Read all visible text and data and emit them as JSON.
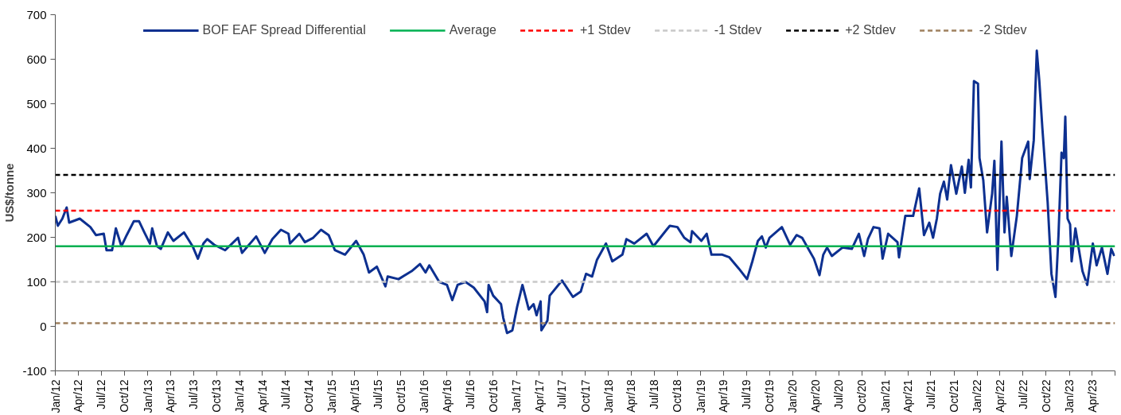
{
  "chart_data": {
    "type": "line",
    "ylabel": "US$/tonne",
    "legend": "top",
    "grid": false,
    "line_style": "solid",
    "marker": "none",
    "xlim": [
      "2012-01",
      "2023-07"
    ],
    "xticks": [
      {
        "value": "2012-01",
        "label": "Jan/12"
      },
      {
        "value": "2012-04",
        "label": "Apr/12"
      },
      {
        "value": "2012-07",
        "label": "Jul/12"
      },
      {
        "value": "2012-10",
        "label": "Oct/12"
      },
      {
        "value": "2013-01",
        "label": "Jan/13"
      },
      {
        "value": "2013-04",
        "label": "Apr/13"
      },
      {
        "value": "2013-07",
        "label": "Jul/13"
      },
      {
        "value": "2013-10",
        "label": "Oct/13"
      },
      {
        "value": "2014-01",
        "label": "Jan/14"
      },
      {
        "value": "2014-04",
        "label": "Apr/14"
      },
      {
        "value": "2014-07",
        "label": "Jul/14"
      },
      {
        "value": "2014-10",
        "label": "Oct/14"
      },
      {
        "value": "2015-01",
        "label": "Jan/15"
      },
      {
        "value": "2015-04",
        "label": "Apr/15"
      },
      {
        "value": "2015-07",
        "label": "Jul/15"
      },
      {
        "value": "2015-10",
        "label": "Oct/15"
      },
      {
        "value": "2016-01",
        "label": "Jan/16"
      },
      {
        "value": "2016-04",
        "label": "Apr/16"
      },
      {
        "value": "2016-07",
        "label": "Jul/16"
      },
      {
        "value": "2016-10",
        "label": "Oct/16"
      },
      {
        "value": "2017-01",
        "label": "Jan/17"
      },
      {
        "value": "2017-04",
        "label": "Apr/17"
      },
      {
        "value": "2017-07",
        "label": "Jul/17"
      },
      {
        "value": "2017-10",
        "label": "Oct/17"
      },
      {
        "value": "2018-01",
        "label": "Jan/18"
      },
      {
        "value": "2018-04",
        "label": "Apr/18"
      },
      {
        "value": "2018-07",
        "label": "Jul/18"
      },
      {
        "value": "2018-10",
        "label": "Oct/18"
      },
      {
        "value": "2019-01",
        "label": "Jan/19"
      },
      {
        "value": "2019-04",
        "label": "Apr/19"
      },
      {
        "value": "2019-07",
        "label": "Jul/19"
      },
      {
        "value": "2019-10",
        "label": "Oct/19"
      },
      {
        "value": "2020-01",
        "label": "Jan/20"
      },
      {
        "value": "2020-04",
        "label": "Apr/20"
      },
      {
        "value": "2020-07",
        "label": "Jul/20"
      },
      {
        "value": "2020-10",
        "label": "Oct/20"
      },
      {
        "value": "2021-01",
        "label": "Jan/21"
      },
      {
        "value": "2021-04",
        "label": "Apr/21"
      },
      {
        "value": "2021-07",
        "label": "Jul/21"
      },
      {
        "value": "2021-10",
        "label": "Oct/21"
      },
      {
        "value": "2022-01",
        "label": "Jan/22"
      },
      {
        "value": "2022-04",
        "label": "Apr/22"
      },
      {
        "value": "2022-07",
        "label": "Jul/22"
      },
      {
        "value": "2022-10",
        "label": "Oct/22"
      },
      {
        "value": "2023-01",
        "label": "Jan/23"
      },
      {
        "value": "2023-04",
        "label": "Apr/23"
      },
      {
        "value": "2023-07",
        "label": null
      }
    ],
    "ylim": [
      -100,
      700
    ],
    "yticks": [
      -100,
      0,
      100,
      200,
      300,
      400,
      500,
      600,
      700
    ],
    "ref_lines": [
      {
        "axis": "y",
        "value": 180,
        "label": "Average",
        "color": "#00b050",
        "line_style": "solid"
      },
      {
        "axis": "y",
        "value": 260,
        "label": "+1 Stdev",
        "color": "#ff0000",
        "line_style": "dashed"
      },
      {
        "axis": "y",
        "value": 100,
        "label": "-1 Stdev",
        "color": "#c8c8c8",
        "line_style": "dashed"
      },
      {
        "axis": "y",
        "value": 340,
        "label": "+2 Stdev",
        "color": "#000000",
        "line_style": "dashed"
      },
      {
        "axis": "y",
        "value": 7,
        "label": "-2 Stdev",
        "color": "#9e805e",
        "line_style": "dashed"
      }
    ],
    "x": [
      "2012-01-01",
      "2012-01-11",
      "2012-01-29",
      "2012-02-15",
      "2012-02-25",
      "2012-04-07",
      "2012-05-19",
      "2012-06-10",
      "2012-07-11",
      "2012-07-22",
      "2012-08-13",
      "2012-08-28",
      "2012-09-19",
      "2012-10-10",
      "2012-11-07",
      "2012-11-28",
      "2012-12-19",
      "2013-01-10",
      "2013-01-19",
      "2013-02-07",
      "2013-02-22",
      "2013-03-22",
      "2013-04-13",
      "2013-05-25",
      "2013-06-28",
      "2013-07-19",
      "2013-08-10",
      "2013-08-25",
      "2013-09-22",
      "2013-11-04",
      "2013-12-25",
      "2014-01-10",
      "2014-03-07",
      "2014-04-10",
      "2014-05-10",
      "2014-06-13",
      "2014-07-13",
      "2014-07-19",
      "2014-08-25",
      "2014-09-16",
      "2014-10-19",
      "2014-11-19",
      "2014-12-19",
      "2015-01-13",
      "2015-02-22",
      "2015-04-07",
      "2015-05-07",
      "2015-05-28",
      "2015-06-28",
      "2015-08-01",
      "2015-08-10",
      "2015-09-22",
      "2015-11-13",
      "2015-12-16",
      "2016-01-07",
      "2016-01-22",
      "2016-03-01",
      "2016-04-01",
      "2016-04-22",
      "2016-05-13",
      "2016-06-13",
      "2016-07-16",
      "2016-08-28",
      "2016-09-07",
      "2016-09-13",
      "2016-10-01",
      "2016-11-01",
      "2016-11-10",
      "2016-11-25",
      "2016-12-16",
      "2017-01-04",
      "2017-01-25",
      "2017-02-19",
      "2017-03-10",
      "2017-03-22",
      "2017-04-07",
      "2017-04-10",
      "2017-05-04",
      "2017-05-13",
      "2017-07-01",
      "2017-08-13",
      "2017-09-13",
      "2017-10-04",
      "2017-10-28",
      "2017-11-16",
      "2017-12-22",
      "2018-01-16",
      "2018-02-25",
      "2018-03-13",
      "2018-04-13",
      "2018-06-01",
      "2018-06-28",
      "2018-08-19",
      "2018-09-01",
      "2018-10-01",
      "2018-10-28",
      "2018-11-22",
      "2018-11-28",
      "2019-01-04",
      "2019-01-25",
      "2019-02-13",
      "2019-03-28",
      "2019-04-25",
      "2019-06-01",
      "2019-07-04",
      "2019-07-25",
      "2019-08-16",
      "2019-09-01",
      "2019-09-16",
      "2019-10-01",
      "2019-11-19",
      "2019-12-22",
      "2020-01-16",
      "2020-02-07",
      "2020-03-25",
      "2020-04-16",
      "2020-05-01",
      "2020-05-16",
      "2020-06-04",
      "2020-07-16",
      "2020-08-22",
      "2020-09-19",
      "2020-10-10",
      "2020-10-25",
      "2020-11-16",
      "2020-12-10",
      "2020-12-22",
      "2021-01-13",
      "2021-02-19",
      "2021-02-25",
      "2021-03-22",
      "2021-04-22",
      "2021-05-16",
      "2021-06-04",
      "2021-06-25",
      "2021-07-10",
      "2021-07-25",
      "2021-08-07",
      "2021-08-22",
      "2021-09-04",
      "2021-09-19",
      "2021-10-10",
      "2021-11-01",
      "2021-11-13",
      "2021-11-28",
      "2021-12-07",
      "2021-12-19",
      "2022-01-04",
      "2022-01-10",
      "2022-01-25",
      "2022-02-09",
      "2022-03-01",
      "2022-03-10",
      "2022-03-22",
      "2022-04-07",
      "2022-04-19",
      "2022-04-28",
      "2022-05-16",
      "2022-06-07",
      "2022-06-28",
      "2022-07-22",
      "2022-07-28",
      "2022-08-13",
      "2022-08-19",
      "2022-08-25",
      "2022-09-04",
      "2022-09-16",
      "2022-10-07",
      "2022-10-22",
      "2022-11-07",
      "2022-11-19",
      "2022-12-01",
      "2022-12-10",
      "2022-12-16",
      "2022-12-25",
      "2023-01-04",
      "2023-01-10",
      "2023-01-25",
      "2023-02-22",
      "2023-03-13",
      "2023-04-04",
      "2023-04-19",
      "2023-05-10",
      "2023-06-01",
      "2023-06-16",
      "2023-06-28"
    ],
    "series": [
      {
        "name": "BOF EAF Spread Differential",
        "color": "#0d3090",
        "values": [
          248,
          226,
          242,
          267,
          233,
          242,
          223,
          205,
          208,
          171,
          171,
          220,
          180,
          205,
          236,
          236,
          211,
          186,
          220,
          180,
          174,
          211,
          192,
          211,
          180,
          152,
          186,
          196,
          183,
          171,
          199,
          165,
          202,
          165,
          196,
          217,
          208,
          186,
          208,
          189,
          199,
          217,
          205,
          171,
          161,
          192,
          161,
          121,
          134,
          90,
          112,
          106,
          124,
          140,
          121,
          137,
          100,
          93,
          59,
          93,
          100,
          87,
          56,
          32,
          93,
          69,
          50,
          19,
          -15,
          -9,
          44,
          93,
          38,
          50,
          25,
          56,
          -9,
          13,
          69,
          103,
          66,
          78,
          118,
          112,
          149,
          186,
          146,
          161,
          196,
          186,
          208,
          180,
          217,
          226,
          223,
          199,
          189,
          214,
          192,
          208,
          161,
          161,
          155,
          130,
          106,
          146,
          192,
          202,
          177,
          199,
          223,
          183,
          205,
          199,
          152,
          115,
          161,
          177,
          158,
          177,
          174,
          208,
          158,
          196,
          223,
          220,
          152,
          208,
          189,
          155,
          248,
          248,
          310,
          205,
          233,
          199,
          242,
          298,
          325,
          285,
          362,
          298,
          359,
          300,
          374,
          312,
          551,
          545,
          378,
          328,
          211,
          298,
          372,
          127,
          415,
          211,
          291,
          158,
          248,
          378,
          415,
          331,
          418,
          526,
          619,
          551,
          446,
          279,
          118,
          66,
          205,
          390,
          378,
          471,
          242,
          229,
          146,
          220,
          124,
          93,
          186,
          137,
          177,
          118,
          174,
          158
        ]
      }
    ]
  }
}
